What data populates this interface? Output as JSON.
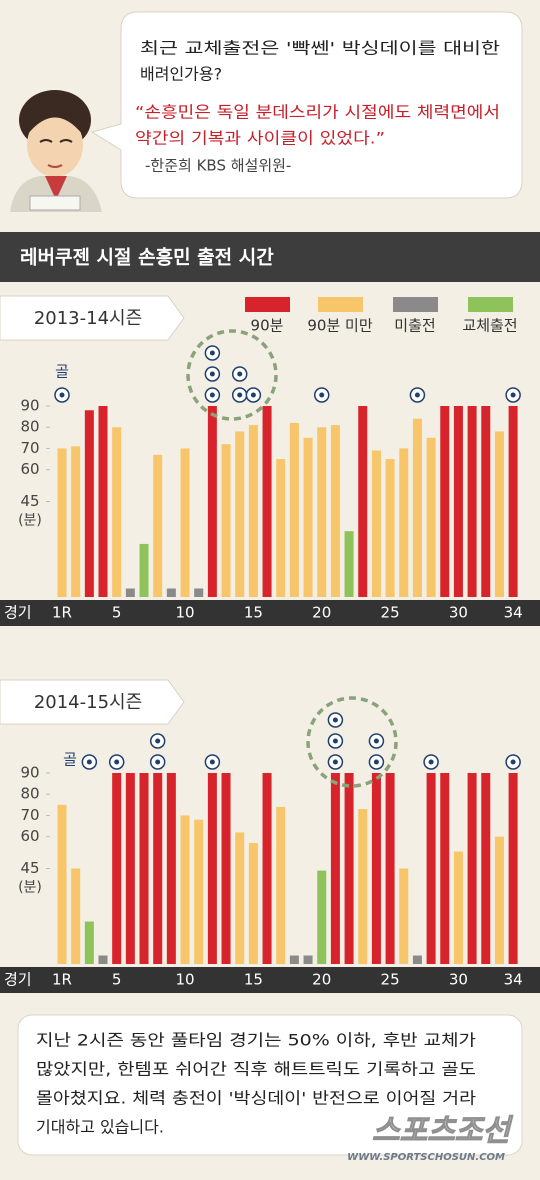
{
  "bubble": {
    "question": [
      "최근 교체출전은 '빡쎈' 박싱데이를 대비한",
      "배려인가용?"
    ],
    "quote": [
      "“손흥민은 독일 분데스리가 시절에도 체력면에서",
      " 약간의 기복과 사이클이 있었다.”"
    ],
    "source": "-한준희 KBS 해설위원-"
  },
  "header": "레버쿠젠 시절 손흥민 출전 시간",
  "chart_data": [
    {
      "type": "bar",
      "title": "2013-14시즌",
      "x_label": "경기",
      "y_label": "(분)",
      "goal_label": "골",
      "categories": [
        "1R",
        null,
        null,
        null,
        "5",
        null,
        null,
        null,
        null,
        "10",
        null,
        null,
        null,
        null,
        "15",
        null,
        null,
        null,
        null,
        "20",
        null,
        null,
        null,
        null,
        "25",
        null,
        null,
        null,
        null,
        "30",
        null,
        null,
        null,
        "34"
      ],
      "ylim": [
        0,
        90
      ],
      "yticks": [
        45,
        60,
        70,
        80,
        90
      ],
      "series": [
        {
          "name": "90분",
          "color": "#d7232b",
          "values": [
            null,
            null,
            88,
            90,
            null,
            null,
            null,
            null,
            null,
            null,
            null,
            90,
            null,
            null,
            null,
            90,
            null,
            null,
            null,
            null,
            null,
            null,
            90,
            null,
            null,
            null,
            null,
            null,
            90,
            90,
            90,
            90,
            null,
            90
          ]
        },
        {
          "name": "90분 미만",
          "color": "#f7c56a",
          "values": [
            70,
            71,
            null,
            null,
            80,
            null,
            null,
            67,
            null,
            70,
            null,
            null,
            72,
            78,
            81,
            null,
            65,
            82,
            75,
            80,
            81,
            null,
            null,
            69,
            65,
            70,
            84,
            75,
            null,
            null,
            null,
            null,
            78,
            null
          ]
        },
        {
          "name": "미출전",
          "color": "#8a8a8a",
          "values": [
            null,
            null,
            null,
            null,
            null,
            4,
            null,
            null,
            4,
            null,
            4,
            null,
            null,
            null,
            null,
            null,
            null,
            null,
            null,
            null,
            null,
            null,
            null,
            null,
            null,
            null,
            null,
            null,
            null,
            null,
            null,
            null,
            null,
            null
          ]
        },
        {
          "name": "교체출전",
          "color": "#8dc35a",
          "values": [
            null,
            null,
            null,
            null,
            null,
            null,
            25,
            null,
            null,
            null,
            null,
            null,
            null,
            null,
            null,
            null,
            null,
            null,
            null,
            null,
            null,
            31,
            null,
            null,
            null,
            null,
            null,
            null,
            null,
            null,
            null,
            null,
            null,
            null
          ]
        }
      ],
      "goals": [
        1,
        0,
        0,
        0,
        0,
        0,
        0,
        0,
        0,
        0,
        0,
        3,
        0,
        2,
        1,
        0,
        0,
        0,
        0,
        1,
        0,
        0,
        0,
        0,
        0,
        0,
        1,
        0,
        0,
        0,
        0,
        0,
        0,
        1
      ]
    },
    {
      "type": "bar",
      "title": "2014-15시즌",
      "x_label": "경기",
      "y_label": "(분)",
      "goal_label": "골",
      "categories": [
        "1R",
        null,
        null,
        null,
        "5",
        null,
        null,
        null,
        null,
        "10",
        null,
        null,
        null,
        null,
        "15",
        null,
        null,
        null,
        null,
        "20",
        null,
        null,
        null,
        null,
        "25",
        null,
        null,
        null,
        null,
        "30",
        null,
        null,
        null,
        "34"
      ],
      "ylim": [
        0,
        90
      ],
      "yticks": [
        45,
        60,
        70,
        80,
        90
      ],
      "series": [
        {
          "color": "#d7232b",
          "values": [
            null,
            null,
            null,
            null,
            90,
            90,
            90,
            90,
            90,
            null,
            null,
            90,
            90,
            null,
            null,
            90,
            null,
            null,
            null,
            null,
            90,
            90,
            null,
            90,
            90,
            null,
            null,
            90,
            90,
            null,
            90,
            90,
            null,
            90
          ]
        },
        {
          "color": "#f7c56a",
          "values": [
            75,
            45,
            null,
            null,
            null,
            null,
            null,
            null,
            null,
            70,
            68,
            null,
            null,
            62,
            57,
            null,
            74,
            null,
            null,
            null,
            null,
            null,
            73,
            null,
            null,
            45,
            null,
            null,
            null,
            53,
            null,
            null,
            60,
            null
          ]
        },
        {
          "color": "#8a8a8a",
          "values": [
            null,
            null,
            null,
            4,
            null,
            null,
            null,
            null,
            null,
            null,
            null,
            null,
            null,
            null,
            null,
            null,
            null,
            4,
            4,
            null,
            null,
            null,
            null,
            null,
            null,
            null,
            4,
            null,
            null,
            null,
            null,
            null,
            null,
            null
          ]
        },
        {
          "color": "#8dc35a",
          "values": [
            null,
            null,
            20,
            null,
            null,
            null,
            null,
            null,
            null,
            null,
            null,
            null,
            null,
            null,
            null,
            null,
            null,
            null,
            null,
            44,
            null,
            null,
            null,
            null,
            null,
            null,
            null,
            null,
            null,
            null,
            null,
            null,
            null,
            null
          ]
        }
      ],
      "goals": [
        0,
        0,
        1,
        0,
        1,
        0,
        0,
        2,
        0,
        0,
        0,
        1,
        0,
        0,
        0,
        0,
        0,
        0,
        0,
        0,
        3,
        0,
        0,
        2,
        0,
        0,
        0,
        1,
        0,
        0,
        0,
        0,
        0,
        1
      ]
    }
  ],
  "footer": {
    "text": [
      "지난 2시즌 동안 풀타임 경기는 50% 이하, 후반 교체가",
      "많았지만, 한템포 쉬어간 직후 해트트릭도 기록하고 골도",
      "몰아쳤지요. 체력 충전이 '박싱데이' 반전으로 이어질 거라",
      "기대하고 있습니다."
    ],
    "watermark": "스포츠조선",
    "url": "WWW.SPORTSCHOSUN.COM"
  }
}
